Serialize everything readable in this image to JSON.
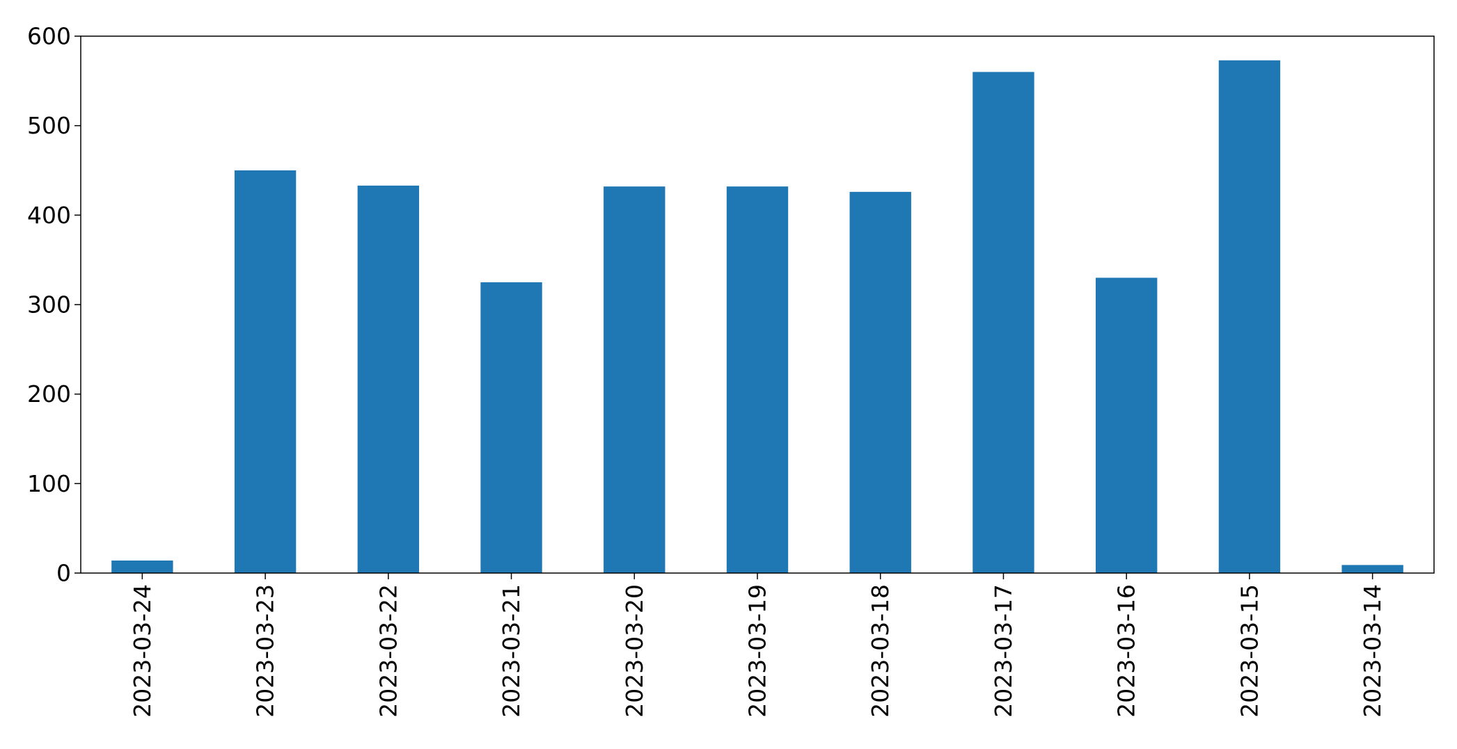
{
  "colors": {
    "bar": "#1f77b4",
    "axis": "#000000",
    "background": "#ffffff"
  },
  "chart_data": {
    "type": "bar",
    "title": "",
    "xlabel": "",
    "ylabel": "",
    "categories": [
      "2023-03-24",
      "2023-03-23",
      "2023-03-22",
      "2023-03-21",
      "2023-03-20",
      "2023-03-19",
      "2023-03-18",
      "2023-03-17",
      "2023-03-16",
      "2023-03-15",
      "2023-03-14"
    ],
    "values": [
      14,
      450,
      433,
      325,
      432,
      432,
      426,
      560,
      330,
      573,
      9
    ],
    "ylim": [
      0,
      600
    ],
    "yticks": [
      0,
      100,
      200,
      300,
      400,
      500,
      600
    ],
    "grid": false,
    "legend": "none"
  }
}
